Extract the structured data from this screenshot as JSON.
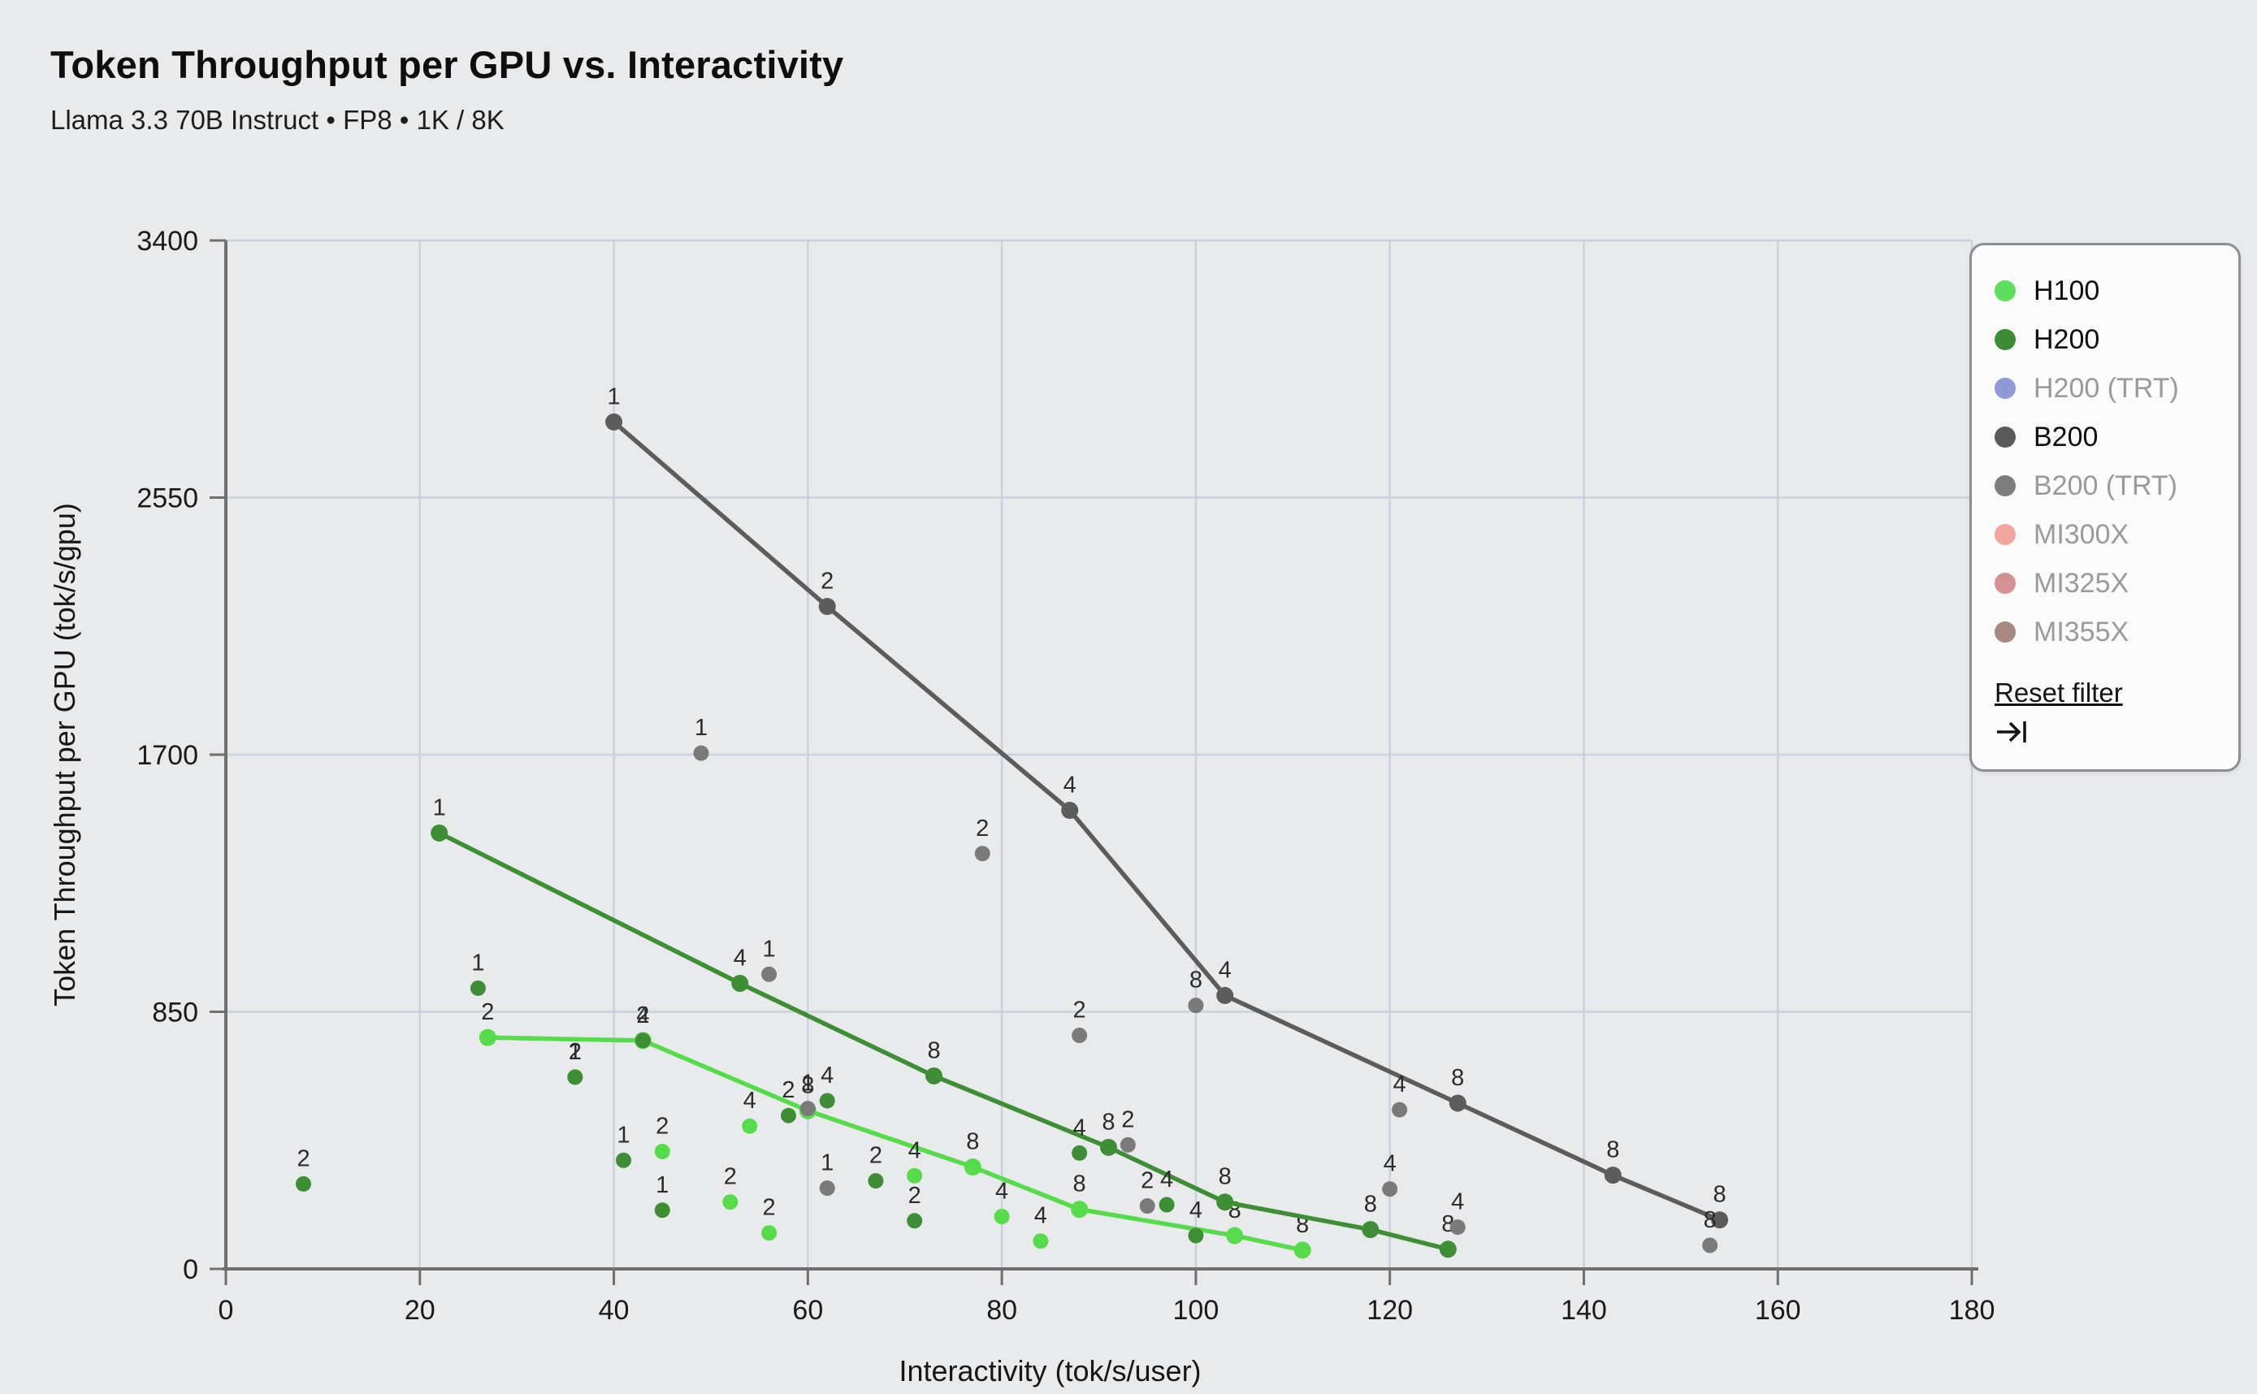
{
  "header": {
    "title": "Token Throughput per GPU vs. Interactivity",
    "subtitle": "Llama 3.3 70B Instruct • FP8 • 1K / 8K"
  },
  "legend": {
    "items": [
      {
        "label": "H100",
        "color": "#5ce05c",
        "active": true
      },
      {
        "label": "H200",
        "color": "#3c8c34",
        "active": true
      },
      {
        "label": "H200 (TRT)",
        "color": "#8e99d8",
        "active": false
      },
      {
        "label": "B200",
        "color": "#595959",
        "active": true
      },
      {
        "label": "B200 (TRT)",
        "color": "#7e7e7e",
        "active": false
      },
      {
        "label": "MI300X",
        "color": "#f2a79e",
        "active": false
      },
      {
        "label": "MI325X",
        "color": "#d69292",
        "active": false
      },
      {
        "label": "MI355X",
        "color": "#a98883",
        "active": false
      }
    ],
    "reset_label": "Reset filter",
    "icons": {
      "collapse_legend": "arrow-to-bar-right"
    }
  },
  "chart_data": {
    "type": "scatter",
    "title": "Token Throughput per GPU vs. Interactivity",
    "xlabel": "Interactivity (tok/s/user)",
    "ylabel": "Token Throughput per GPU (tok/s/gpu)",
    "xlim": [
      0,
      180
    ],
    "ylim": [
      0,
      3400
    ],
    "xticks": [
      0,
      20,
      40,
      60,
      80,
      100,
      120,
      140,
      160,
      180
    ],
    "yticks": [
      0,
      850,
      1700,
      2550,
      3400
    ],
    "grid": true,
    "legend_position": "top-right",
    "point_label_meaning": "number of GPUs (tensor parallelism)",
    "series": [
      {
        "name": "H100",
        "line_color": "#56db4b",
        "point_color": "#56db4b",
        "frontier": [
          [
            27,
            765,
            "2"
          ],
          [
            43,
            755,
            "2"
          ],
          [
            60,
            523,
            "8"
          ],
          [
            77,
            337,
            "8"
          ],
          [
            88,
            197,
            "8"
          ],
          [
            104,
            110,
            "8"
          ],
          [
            111,
            62,
            "8"
          ]
        ],
        "scatter": [
          [
            36,
            634,
            "1"
          ],
          [
            45,
            388,
            "2"
          ],
          [
            52,
            221,
            "2"
          ],
          [
            54,
            472,
            "4"
          ],
          [
            56,
            119,
            "2"
          ],
          [
            71,
            308,
            "4"
          ],
          [
            80,
            173,
            "4"
          ],
          [
            84,
            92,
            "4"
          ]
        ]
      },
      {
        "name": "H200",
        "line_color": "#3e8e35",
        "point_color": "#3e8e35",
        "frontier": [
          [
            22,
            1441,
            "1"
          ],
          [
            53,
            944,
            "4"
          ],
          [
            73,
            638,
            "8"
          ],
          [
            91,
            402,
            "8"
          ],
          [
            103,
            221,
            "8"
          ],
          [
            118,
            130,
            "8"
          ],
          [
            126,
            65,
            "8"
          ]
        ],
        "scatter": [
          [
            8,
            281,
            "2"
          ],
          [
            26,
            928,
            "1"
          ],
          [
            36,
            634,
            "2"
          ],
          [
            41,
            359,
            "1"
          ],
          [
            43,
            755,
            "4"
          ],
          [
            45,
            194,
            "1"
          ],
          [
            58,
            507,
            "2"
          ],
          [
            62,
            556,
            "4"
          ],
          [
            67,
            291,
            "2"
          ],
          [
            71,
            159,
            "2"
          ],
          [
            88,
            383,
            "4"
          ],
          [
            97,
            212,
            "4"
          ],
          [
            100,
            110,
            "4"
          ]
        ]
      },
      {
        "name": "B200",
        "line_color": "#5c5c5c",
        "point_color": "#5c5c5c",
        "scatter_color": "#7a7a7a",
        "frontier": [
          [
            40,
            2800,
            "1"
          ],
          [
            62,
            2190,
            "2"
          ],
          [
            87,
            1516,
            "4"
          ],
          [
            103,
            904,
            "4"
          ],
          [
            127,
            548,
            "8"
          ],
          [
            143,
            310,
            "8"
          ],
          [
            154,
            162,
            "8"
          ]
        ],
        "scatter": [
          [
            49,
            1705,
            "1"
          ],
          [
            56,
            974,
            "1"
          ],
          [
            60,
            530,
            "1"
          ],
          [
            62,
            267,
            "1"
          ],
          [
            78,
            1373,
            "2"
          ],
          [
            88,
            772,
            "2"
          ],
          [
            93,
            410,
            "2"
          ],
          [
            95,
            208,
            "2"
          ],
          [
            100,
            871,
            "8"
          ],
          [
            120,
            264,
            "4"
          ],
          [
            121,
            526,
            "4"
          ],
          [
            127,
            138,
            "4"
          ],
          [
            153,
            78,
            "8"
          ]
        ]
      }
    ]
  },
  "colors": {
    "background": "#e9eaec",
    "gridline": "#c9d1dc",
    "axis": "#6f6f6f",
    "tick_text": "#1a1a1a",
    "point_label_text": "#2b2b2b"
  }
}
